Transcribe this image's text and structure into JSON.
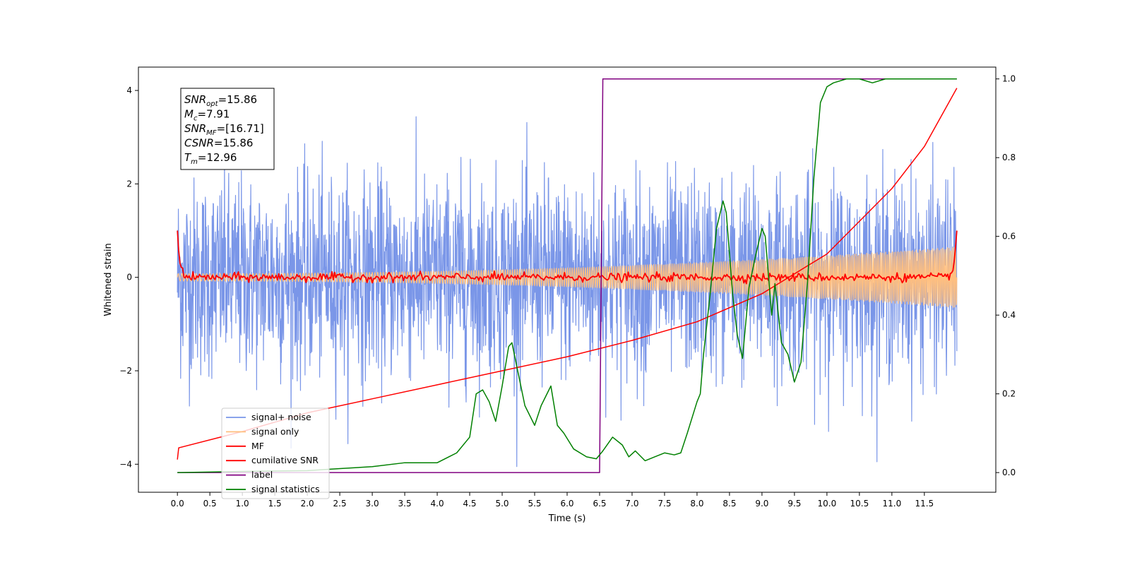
{
  "chart_data": {
    "type": "line",
    "xlabel": "Time (s)",
    "ylabel": "Whitened strain",
    "x_ticks": [
      "0.0",
      "0.5",
      "1.0",
      "1.5",
      "2.0",
      "2.5",
      "3.0",
      "3.5",
      "4.0",
      "4.5",
      "5.0",
      "5.5",
      "6.0",
      "6.5",
      "7.0",
      "7.5",
      "8.0",
      "8.5",
      "9.0",
      "9.5",
      "10.0",
      "10.5",
      "11.0",
      "11.5"
    ],
    "xlim": [
      -0.6,
      12.6
    ],
    "ylim_left": [
      -4.6,
      4.5
    ],
    "ylim_right": [
      -0.05,
      1.03
    ],
    "y_ticks_left": [
      "−4",
      "−2",
      "0",
      "2",
      "4"
    ],
    "y_ticks_right": [
      "0.0",
      "0.2",
      "0.4",
      "0.6",
      "0.8",
      "1.0"
    ],
    "grid": false,
    "legend_position": "lower-left",
    "annotation": {
      "lines": [
        {
          "var": "SNR",
          "sub": "opt",
          "value": "=15.86"
        },
        {
          "var": "M",
          "sub": "c",
          "value": "=7.91"
        },
        {
          "var": "SNR",
          "sub": "MF",
          "value": "=[16.71]"
        },
        {
          "var": "CSNR",
          "sub": "",
          "value": "=15.86"
        },
        {
          "var": "T",
          "sub": "m",
          "value": "=12.96"
        }
      ]
    },
    "series": [
      {
        "name": "signal+ noise",
        "color": "#7a96e8",
        "axis": "left",
        "style": "noise",
        "t_range": [
          0,
          12.0
        ],
        "amplitude_sigma": 1.05
      },
      {
        "name": "signal only",
        "color": "#ffbf7f",
        "axis": "left",
        "style": "chirp",
        "t_range": [
          0,
          12.0
        ],
        "amplitude_start": 0.08,
        "amplitude_end": 0.65
      },
      {
        "name": "MF",
        "color": "#ff0000",
        "axis": "left",
        "style": "jitter",
        "t_range": [
          0,
          12.0
        ],
        "start_value": 1.0,
        "end_value": 1.0
      },
      {
        "name": "cumilative SNR",
        "color": "#ff0000",
        "axis": "left",
        "x": [
          0,
          0.02,
          1,
          2,
          3,
          4,
          5,
          6,
          7,
          8,
          9,
          10,
          11,
          11.5,
          12.0
        ],
        "y": [
          -3.9,
          -3.65,
          -3.3,
          -2.9,
          -2.6,
          -2.3,
          -2.0,
          -1.7,
          -1.35,
          -0.95,
          -0.35,
          0.5,
          1.9,
          2.8,
          4.05
        ]
      },
      {
        "name": "label",
        "color": "#800080",
        "axis": "right",
        "x": [
          0,
          6.5,
          6.55,
          12.0
        ],
        "y": [
          0.0,
          0.0,
          1.0,
          1.0
        ]
      },
      {
        "name": "signal statistics",
        "color": "#008000",
        "axis": "right",
        "x": [
          0,
          1,
          2,
          2.5,
          3,
          3.5,
          4,
          4.3,
          4.5,
          4.6,
          4.7,
          4.8,
          4.9,
          5.0,
          5.1,
          5.15,
          5.25,
          5.35,
          5.5,
          5.6,
          5.75,
          5.85,
          5.95,
          6.1,
          6.3,
          6.45,
          6.55,
          6.7,
          6.85,
          6.95,
          7.05,
          7.2,
          7.35,
          7.5,
          7.65,
          7.75,
          7.85,
          8.0,
          8.05,
          8.1,
          8.2,
          8.3,
          8.4,
          8.45,
          8.55,
          8.62,
          8.7,
          8.8,
          8.9,
          9.0,
          9.05,
          9.1,
          9.15,
          9.2,
          9.3,
          9.4,
          9.5,
          9.6,
          9.7,
          9.8,
          9.9,
          10.0,
          10.1,
          10.3,
          10.5,
          10.7,
          10.9,
          11.2,
          11.6,
          12.0
        ],
        "y": [
          0.0,
          0.003,
          0.005,
          0.01,
          0.015,
          0.025,
          0.025,
          0.05,
          0.09,
          0.2,
          0.21,
          0.18,
          0.13,
          0.22,
          0.32,
          0.33,
          0.25,
          0.17,
          0.12,
          0.17,
          0.22,
          0.12,
          0.1,
          0.06,
          0.04,
          0.035,
          0.055,
          0.09,
          0.07,
          0.04,
          0.055,
          0.03,
          0.04,
          0.05,
          0.045,
          0.05,
          0.1,
          0.18,
          0.2,
          0.3,
          0.45,
          0.62,
          0.69,
          0.66,
          0.45,
          0.35,
          0.29,
          0.47,
          0.55,
          0.62,
          0.6,
          0.5,
          0.4,
          0.48,
          0.33,
          0.3,
          0.23,
          0.28,
          0.48,
          0.75,
          0.94,
          0.98,
          0.99,
          1.0,
          1.0,
          0.99,
          1.0,
          1.0,
          1.0,
          1.0
        ]
      }
    ]
  }
}
